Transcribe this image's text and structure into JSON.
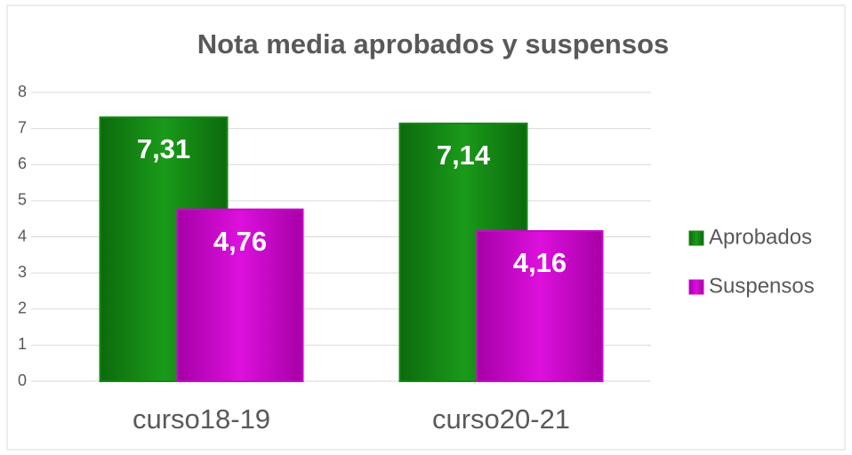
{
  "chart_data": {
    "type": "bar",
    "title": "Nota media aprobados y suspensos",
    "categories": [
      "curso18-19",
      "curso20-21"
    ],
    "series": [
      {
        "name": "Aprobados",
        "color": "#138a13",
        "values": [
          7.31,
          7.14
        ],
        "value_labels": [
          "7,31",
          "7,14"
        ]
      },
      {
        "name": "Suspensos",
        "color": "#cc06cc",
        "values": [
          4.76,
          4.16
        ],
        "value_labels": [
          "4,76",
          "4,16"
        ]
      }
    ],
    "ylim": [
      0,
      8
    ],
    "yticks": [
      0,
      1,
      2,
      3,
      4,
      5,
      6,
      7,
      8
    ],
    "grid": true,
    "legend": "right"
  }
}
